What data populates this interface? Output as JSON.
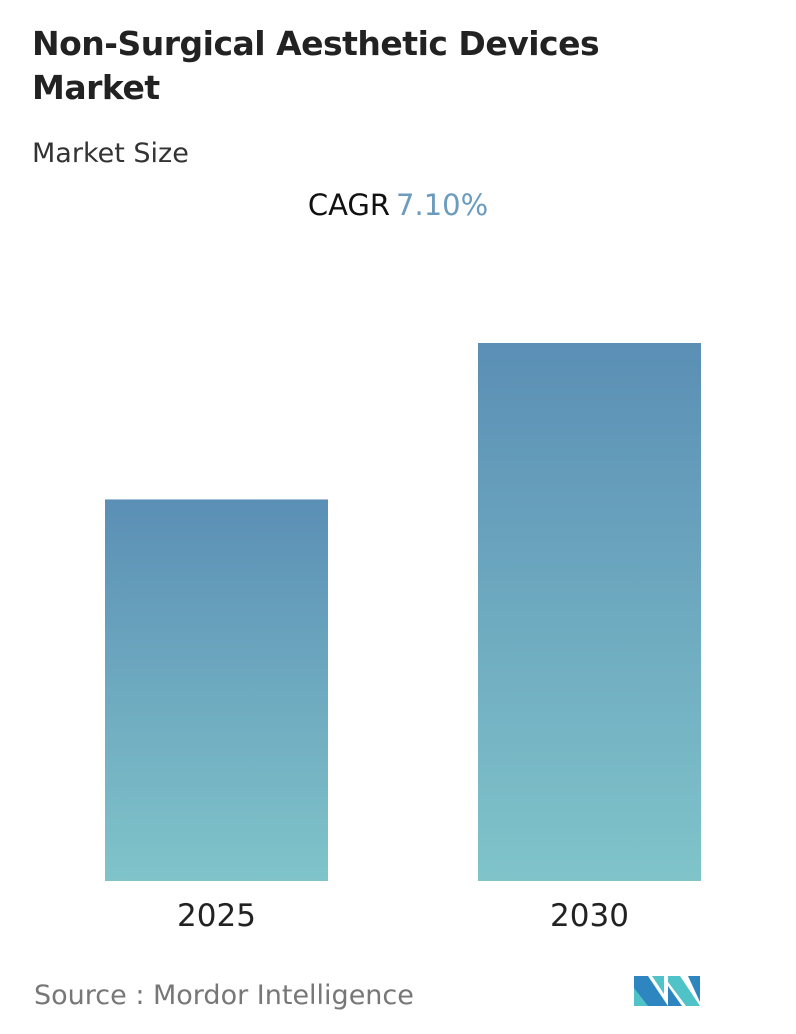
{
  "title": "Non-Surgical Aesthetic Devices Market",
  "subtitle": "Market Size",
  "cagr": {
    "label": "CAGR",
    "value": "7.10%",
    "value_color": "#6b9bbf"
  },
  "source": "Source :  Mordor Intelligence",
  "logo": "Mordor Intelligence logo",
  "chart_data": {
    "type": "bar",
    "categories": [
      "2025",
      "2030"
    ],
    "values": [
      1.0,
      1.41
    ],
    "value_note": "relative bar heights; no axis or values printed",
    "xlabel": "",
    "ylabel": "",
    "grid": false,
    "colors": {
      "top": "#5b8fb5",
      "bottom": "#80c4ca"
    }
  }
}
